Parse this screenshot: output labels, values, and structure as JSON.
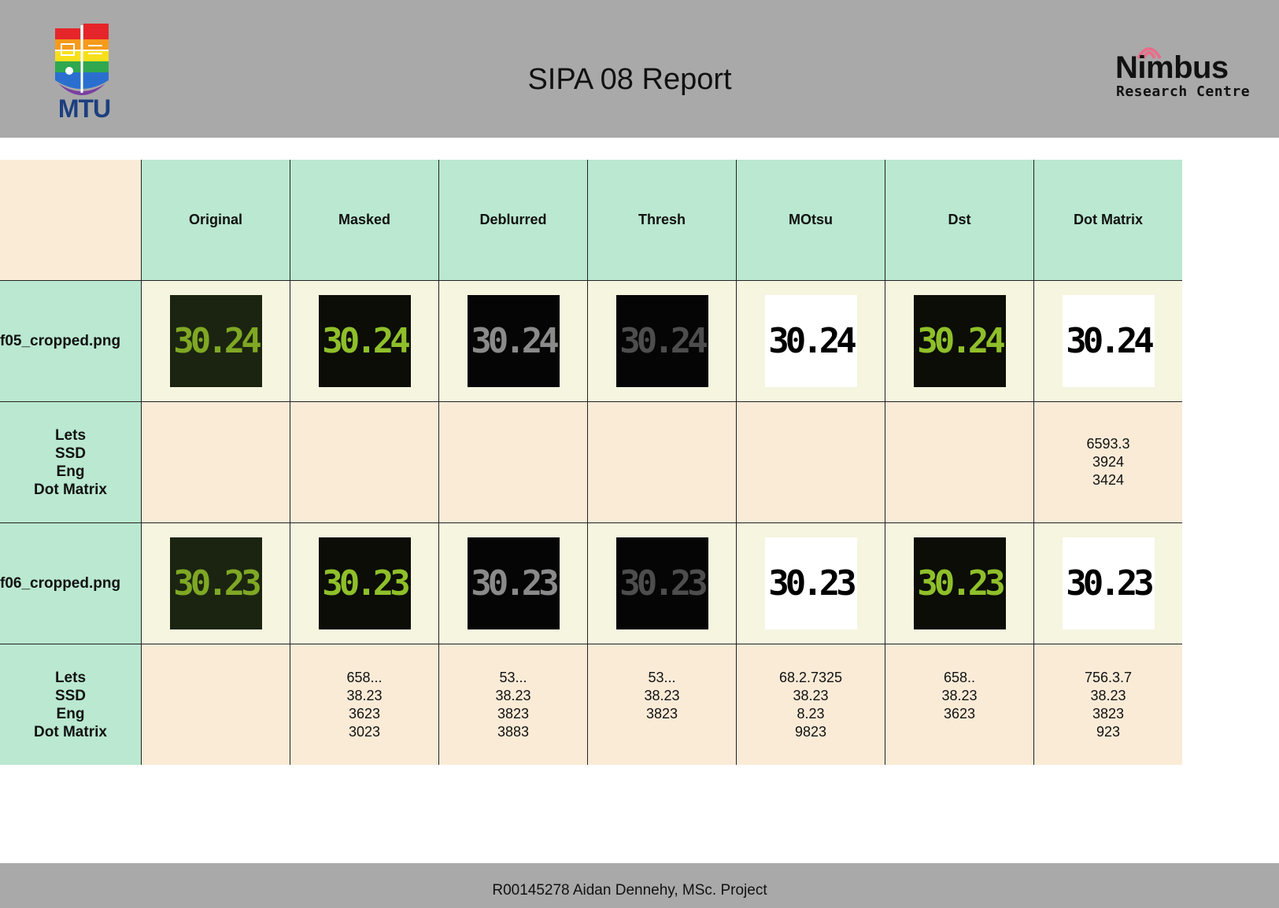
{
  "header": {
    "title": "SIPA 08 Report",
    "left_logo": {
      "icon": "mtu-logo-icon",
      "text": "MTU",
      "colors": [
        "#e5252a",
        "#f59a1c",
        "#f7e01a",
        "#2fa84f",
        "#2a6fcf",
        "#7b3fa0"
      ]
    },
    "right_logo": {
      "icon": "nimbus-logo-icon",
      "word": "Nimbus",
      "sub": "Research Centre",
      "accent": "#e86f8a"
    }
  },
  "table": {
    "columns": [
      "Original",
      "Masked",
      "Deblurred",
      "Thresh",
      "MOtsu",
      "Dst",
      "Dot Matrix"
    ],
    "rows": [
      {
        "type": "image",
        "label": "f05_cropped.png",
        "cells": [
          {
            "digits": "30.24",
            "style": "darkgreen"
          },
          {
            "digits": "30.24",
            "style": "green"
          },
          {
            "digits": "30.24",
            "style": "gray"
          },
          {
            "digits": "30.24",
            "style": "dimgray"
          },
          {
            "digits": "30.24",
            "style": "white"
          },
          {
            "digits": "30.24",
            "style": "green"
          },
          {
            "digits": "30.24",
            "style": "white"
          }
        ]
      },
      {
        "type": "values",
        "labels": [
          "Lets",
          "SSD",
          "Eng",
          "Dot Matrix"
        ],
        "cells": [
          [],
          [],
          [],
          [],
          [],
          [],
          [
            "6593.3",
            "3924",
            "3424"
          ]
        ]
      },
      {
        "type": "image",
        "label": "f06_cropped.png",
        "cells": [
          {
            "digits": "30.23",
            "style": "darkgreen"
          },
          {
            "digits": "30.23",
            "style": "green"
          },
          {
            "digits": "30.23",
            "style": "gray"
          },
          {
            "digits": "30.23",
            "style": "dimgray"
          },
          {
            "digits": "30.23",
            "style": "white"
          },
          {
            "digits": "30.23",
            "style": "green"
          },
          {
            "digits": "30.23",
            "style": "white"
          }
        ]
      },
      {
        "type": "values",
        "labels": [
          "Lets",
          "SSD",
          "Eng",
          "Dot Matrix"
        ],
        "cells": [
          [],
          [
            "658...",
            "38.23",
            "3623",
            "3023"
          ],
          [
            "53...",
            "38.23",
            "3823",
            "3883"
          ],
          [
            "53...",
            "38.23",
            "3823"
          ],
          [
            "68.2.7325",
            "38.23",
            "8.23",
            "9823"
          ],
          [
            "658..",
            "38.23",
            "3623"
          ],
          [
            "756.3.7",
            "38.23",
            "3823",
            "923"
          ]
        ]
      }
    ]
  },
  "footer": {
    "text": "R00145278 Aidan Dennehy, MSc. Project"
  }
}
